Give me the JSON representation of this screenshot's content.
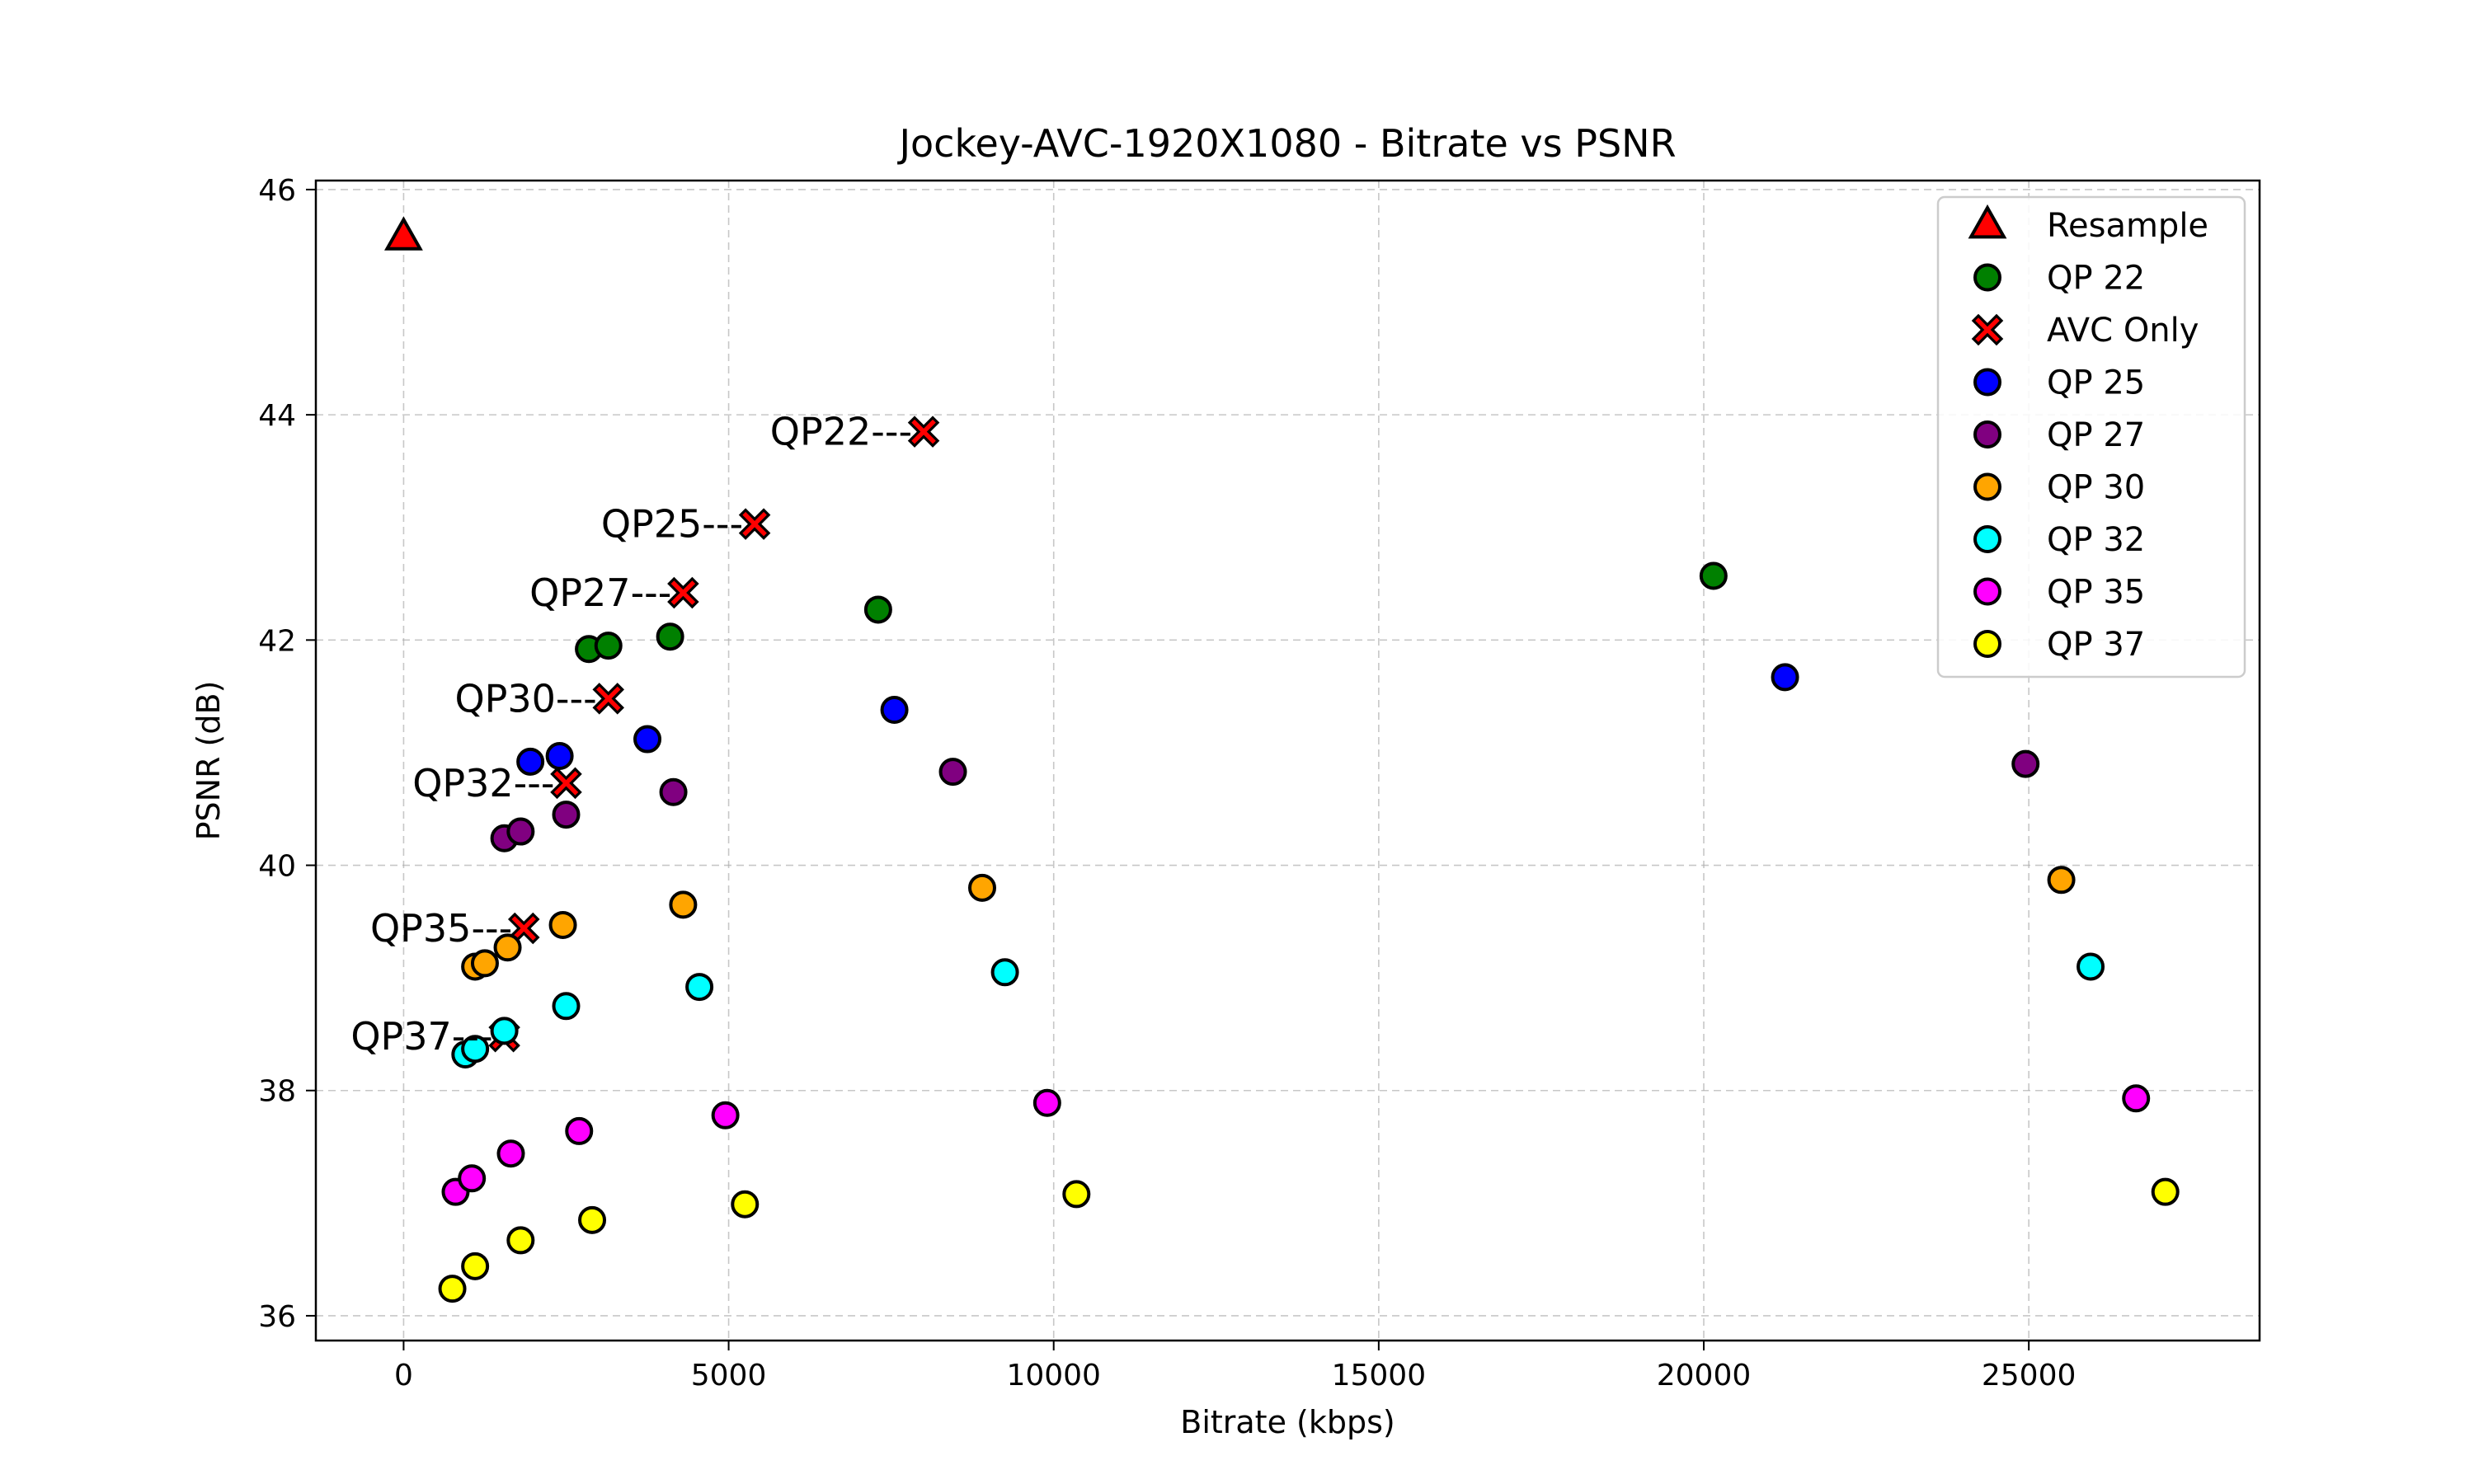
{
  "chart_data": {
    "type": "scatter",
    "title": "Jockey-AVC-1920X1080 - Bitrate vs PSNR",
    "xlabel": "Bitrate (kbps)",
    "ylabel": "PSNR (dB)",
    "xlim": [
      -1350,
      28550
    ],
    "ylim": [
      35.78,
      46.08
    ],
    "xticks": [
      0,
      5000,
      10000,
      15000,
      20000,
      25000
    ],
    "yticks": [
      36,
      38,
      40,
      42,
      44,
      46
    ],
    "grid": true,
    "legend_position": "top-right",
    "series": [
      {
        "name": "Resample",
        "marker": "triangle",
        "color": "#ff0000",
        "points": [
          [
            0,
            45.58
          ]
        ]
      },
      {
        "name": "QP 22",
        "marker": "circle",
        "color": "#008000",
        "points": [
          [
            2850,
            41.92
          ],
          [
            3150,
            41.95
          ],
          [
            4100,
            42.03
          ],
          [
            7300,
            42.27
          ],
          [
            20150,
            42.57
          ]
        ]
      },
      {
        "name": "AVC Only",
        "marker": "x",
        "color": "#ff0000",
        "points": [
          [
            8000,
            43.85
          ],
          [
            5400,
            43.03
          ],
          [
            4300,
            42.42
          ],
          [
            3150,
            41.48
          ],
          [
            2500,
            40.73
          ],
          [
            1850,
            39.44
          ],
          [
            1550,
            38.48
          ]
        ]
      },
      {
        "name": "QP 25",
        "marker": "circle",
        "color": "#0000ff",
        "points": [
          [
            1950,
            40.92
          ],
          [
            2400,
            40.97
          ],
          [
            3750,
            41.12
          ],
          [
            7550,
            41.38
          ],
          [
            21250,
            41.67
          ]
        ]
      },
      {
        "name": "QP 27",
        "marker": "circle",
        "color": "#800080",
        "points": [
          [
            1550,
            40.24
          ],
          [
            1800,
            40.3
          ],
          [
            2500,
            40.45
          ],
          [
            4150,
            40.65
          ],
          [
            8450,
            40.83
          ],
          [
            24950,
            40.9
          ]
        ]
      },
      {
        "name": "QP 30",
        "marker": "circle",
        "color": "#ffa500",
        "points": [
          [
            1100,
            39.1
          ],
          [
            1250,
            39.13
          ],
          [
            1600,
            39.27
          ],
          [
            2450,
            39.47
          ],
          [
            4300,
            39.65
          ],
          [
            8900,
            39.8
          ],
          [
            25500,
            39.87
          ]
        ]
      },
      {
        "name": "QP 32",
        "marker": "circle",
        "color": "#00ffff",
        "points": [
          [
            950,
            38.32
          ],
          [
            1100,
            38.37
          ],
          [
            1550,
            38.53
          ],
          [
            2500,
            38.75
          ],
          [
            4550,
            38.92
          ],
          [
            9250,
            39.05
          ],
          [
            25950,
            39.1
          ]
        ]
      },
      {
        "name": "QP 35",
        "marker": "circle",
        "color": "#ff00ff",
        "points": [
          [
            800,
            37.1
          ],
          [
            1050,
            37.22
          ],
          [
            1650,
            37.44
          ],
          [
            2700,
            37.64
          ],
          [
            4950,
            37.78
          ],
          [
            9900,
            37.89
          ],
          [
            26650,
            37.93
          ]
        ]
      },
      {
        "name": "QP 37",
        "marker": "circle",
        "color": "#ffff00",
        "points": [
          [
            750,
            36.24
          ],
          [
            1100,
            36.44
          ],
          [
            1800,
            36.67
          ],
          [
            2900,
            36.85
          ],
          [
            5250,
            36.99
          ],
          [
            10350,
            37.08
          ],
          [
            27100,
            37.1
          ]
        ]
      }
    ],
    "annotations": [
      {
        "text": "QP22---",
        "x": 8000,
        "y": 43.85
      },
      {
        "text": "QP25---",
        "x": 5400,
        "y": 43.03
      },
      {
        "text": "QP27---",
        "x": 4300,
        "y": 42.42
      },
      {
        "text": "QP30---",
        "x": 3150,
        "y": 41.48
      },
      {
        "text": "QP32---",
        "x": 2500,
        "y": 40.73
      },
      {
        "text": "QP35---",
        "x": 1850,
        "y": 39.44
      },
      {
        "text": "QP37---",
        "x": 1550,
        "y": 38.48
      }
    ]
  }
}
